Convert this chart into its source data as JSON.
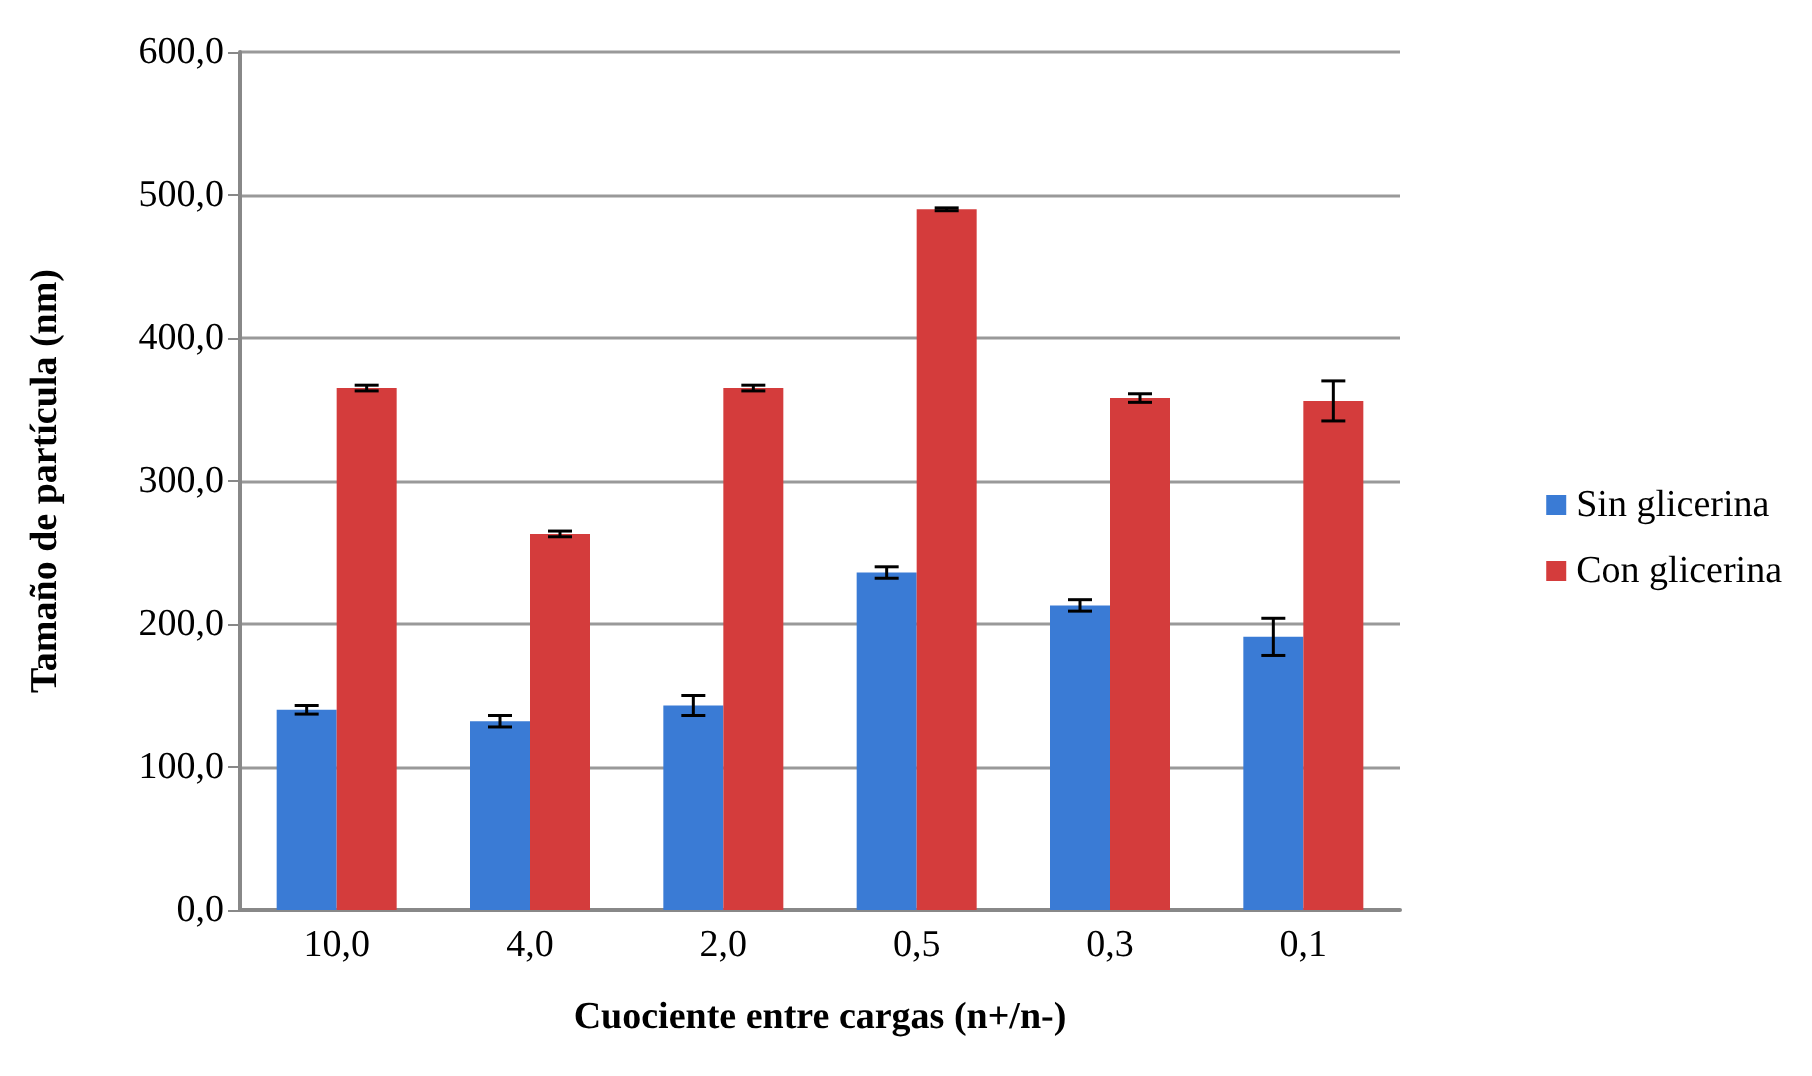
{
  "chart_data": {
    "type": "bar",
    "xlabel": "Cuociente entre cargas (n+/n-)",
    "ylabel": "Tamaño de partícula (nm)",
    "categories": [
      "10,0",
      "4,0",
      "2,0",
      "0,5",
      "0,3",
      "0,1"
    ],
    "series": [
      {
        "name": "Sin glicerina",
        "color": "#3a7bd5",
        "values": [
          140,
          132,
          143,
          236,
          213,
          191
        ],
        "errors": [
          3,
          4,
          7,
          4,
          4,
          13
        ]
      },
      {
        "name": "Con glicerina",
        "color": "#d43c3c",
        "values": [
          365,
          263,
          365,
          490,
          358,
          356
        ],
        "errors": [
          2,
          2,
          2,
          1,
          3,
          14
        ]
      }
    ],
    "ylim": [
      0,
      600
    ],
    "yticks": [
      {
        "value": 0,
        "label": "0,0"
      },
      {
        "value": 100,
        "label": "100,0"
      },
      {
        "value": 200,
        "label": "200,0"
      },
      {
        "value": 300,
        "label": "300,0"
      },
      {
        "value": 400,
        "label": "400,0"
      },
      {
        "value": 500,
        "label": "500,0"
      },
      {
        "value": 600,
        "label": "600,0"
      }
    ],
    "grid": "y",
    "legend": "right"
  }
}
